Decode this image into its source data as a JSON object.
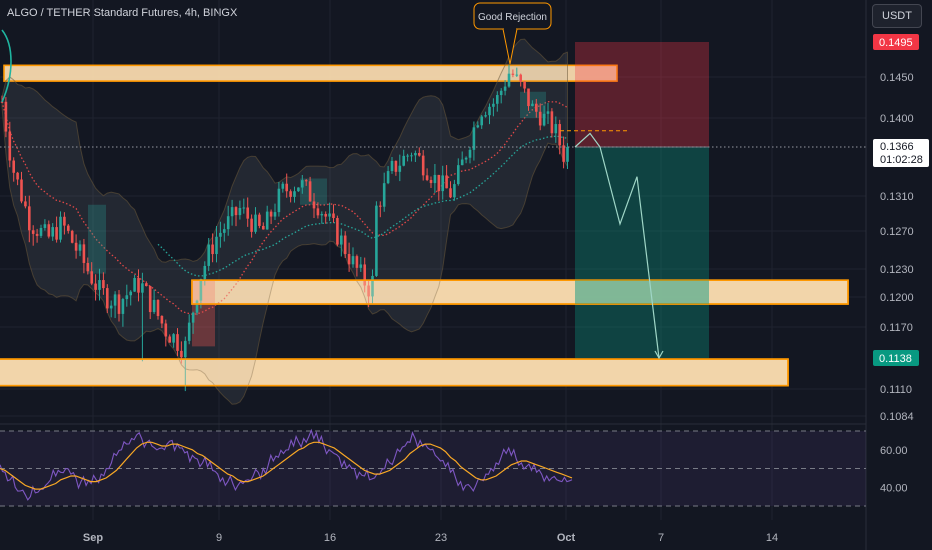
{
  "header": {
    "title": "ALGO / TETHER Standard Futures, 4h, BINGX",
    "currency_button": "USDT"
  },
  "annotation": {
    "text": "Good Rejection"
  },
  "colors": {
    "up": "#26a69a",
    "down": "#ef5350",
    "zone": "#ff9800",
    "background": "#131722",
    "rsi": "#7e57c2",
    "rsi_ma": "#f9a825"
  },
  "chart_data": {
    "type": "candlestick",
    "title": "ALGO / TETHER Standard Futures, 4h, BINGX",
    "price_axis": {
      "ticks": [
        "0.1450",
        "0.1400",
        "0.1310",
        "0.1270",
        "0.1230",
        "0.1200",
        "0.1170",
        "0.1110",
        "0.1084"
      ],
      "labels": [
        {
          "text": "0.1495",
          "color": "#f23645"
        },
        {
          "text": "0.1366",
          "sub": "01:02:28",
          "color": "#ffffff"
        },
        {
          "text": "0.1138",
          "color": "#089981"
        }
      ]
    },
    "x_axis": {
      "ticks": [
        {
          "label": "Sep",
          "bold": true
        },
        {
          "label": "9"
        },
        {
          "label": "16"
        },
        {
          "label": "23"
        },
        {
          "label": "Oct",
          "bold": true
        },
        {
          "label": "7"
        },
        {
          "label": "14"
        }
      ]
    },
    "current_price": 0.1366,
    "zones": [
      {
        "low": 0.1445,
        "high": 0.1465,
        "label": "resistance"
      },
      {
        "low": 0.1193,
        "high": 0.1218,
        "label": "support"
      },
      {
        "low": 0.1113,
        "high": 0.1137,
        "label": "support"
      }
    ],
    "position": {
      "type": "short",
      "entry": 0.1366,
      "stop": 0.1495,
      "target": 0.1138
    },
    "projection": [
      0.1366,
      0.1382,
      0.1366,
      0.1278,
      0.1332,
      0.1138
    ],
    "rsi": {
      "ticks": [
        "60.00",
        "40.00"
      ],
      "upper": 70,
      "middle": 50,
      "lower": 30,
      "series": [
        52,
        48,
        44,
        40,
        38,
        36,
        35,
        37,
        39,
        41,
        44,
        46,
        48,
        50,
        47,
        45,
        43,
        41,
        42,
        44,
        47,
        50,
        53,
        57,
        60,
        63,
        66,
        68,
        66,
        64,
        62,
        60,
        61,
        63,
        65,
        63,
        61,
        59,
        57,
        55,
        53,
        51,
        49,
        47,
        45,
        43,
        42,
        41,
        42,
        44,
        46,
        48,
        50,
        52,
        54,
        56,
        58,
        60,
        62,
        64,
        66,
        67,
        66,
        64,
        62,
        60,
        58,
        56,
        54,
        52,
        50,
        48,
        46,
        44,
        45,
        47,
        50,
        53,
        56,
        59,
        62,
        64,
        66,
        65,
        63,
        60,
        57,
        54,
        51,
        48,
        45,
        43,
        41,
        40,
        41,
        44,
        47,
        50,
        53,
        56,
        58,
        57,
        55,
        53,
        51,
        49,
        48,
        47,
        46,
        45,
        44,
        43,
        43,
        44
      ],
      "ma": [
        50,
        49,
        47,
        45,
        43,
        41,
        40,
        39,
        39,
        40,
        41,
        42,
        44,
        45,
        46,
        46,
        45,
        44,
        43,
        43,
        44,
        45,
        47,
        49,
        52,
        55,
        58,
        61,
        63,
        64,
        64,
        63,
        62,
        62,
        63,
        63,
        62,
        61,
        60,
        58,
        57,
        55,
        53,
        51,
        49,
        47,
        46,
        44,
        43,
        43,
        44,
        45,
        46,
        48,
        50,
        52,
        54,
        56,
        58,
        60,
        61,
        63,
        64,
        64,
        63,
        62,
        61,
        59,
        57,
        55,
        53,
        51,
        49,
        48,
        47,
        47,
        48,
        49,
        51,
        53,
        55,
        58,
        60,
        62,
        63,
        63,
        62,
        61,
        59,
        56,
        54,
        51,
        49,
        47,
        45,
        44,
        44,
        45,
        46,
        48,
        50,
        52,
        53,
        54,
        54,
        53,
        52,
        51,
        50,
        49,
        48,
        47,
        46,
        45
      ]
    }
  }
}
